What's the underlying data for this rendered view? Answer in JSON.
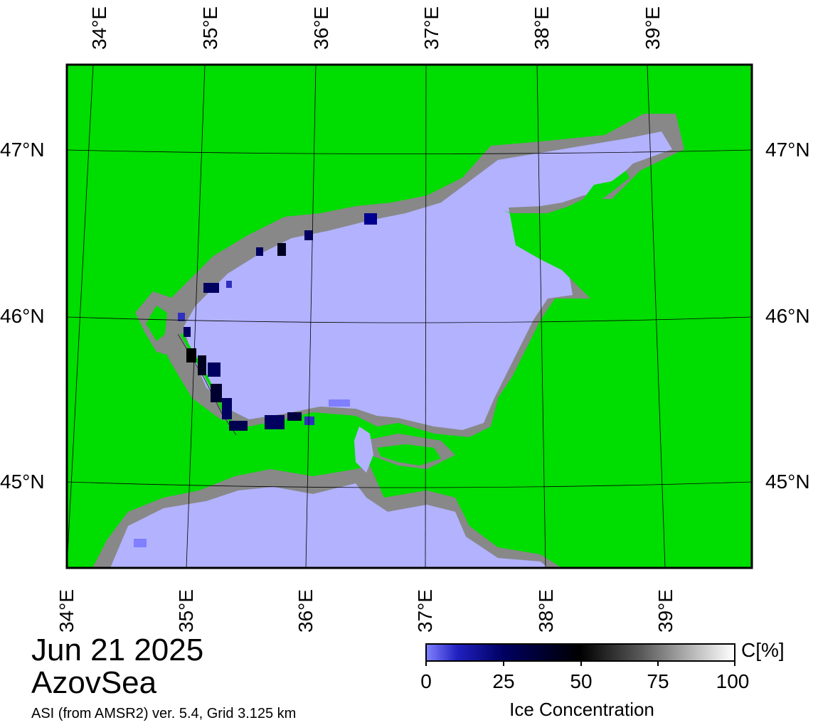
{
  "map": {
    "colors": {
      "land": "#00dd00",
      "coast": "#888888",
      "water": "#b2b2ff",
      "ice_low": "#5a5aff",
      "ice_mid": "#000080",
      "ice_high": "#000000"
    },
    "lon_labels": [
      "34°E",
      "35°E",
      "36°E",
      "37°E",
      "38°E",
      "39°E"
    ],
    "lat_labels": [
      "47°N",
      "46°N",
      "45°N"
    ]
  },
  "caption": {
    "date": "Jun 21 2025",
    "region": "AzovSea",
    "credit": "ASI (from AMSR2) ver. 5.4,  Grid 3.125 km"
  },
  "colorbar": {
    "ticks": [
      "0",
      "25",
      "50",
      "75",
      "100"
    ],
    "unit": "C[%]",
    "title": "Ice Concentration"
  }
}
